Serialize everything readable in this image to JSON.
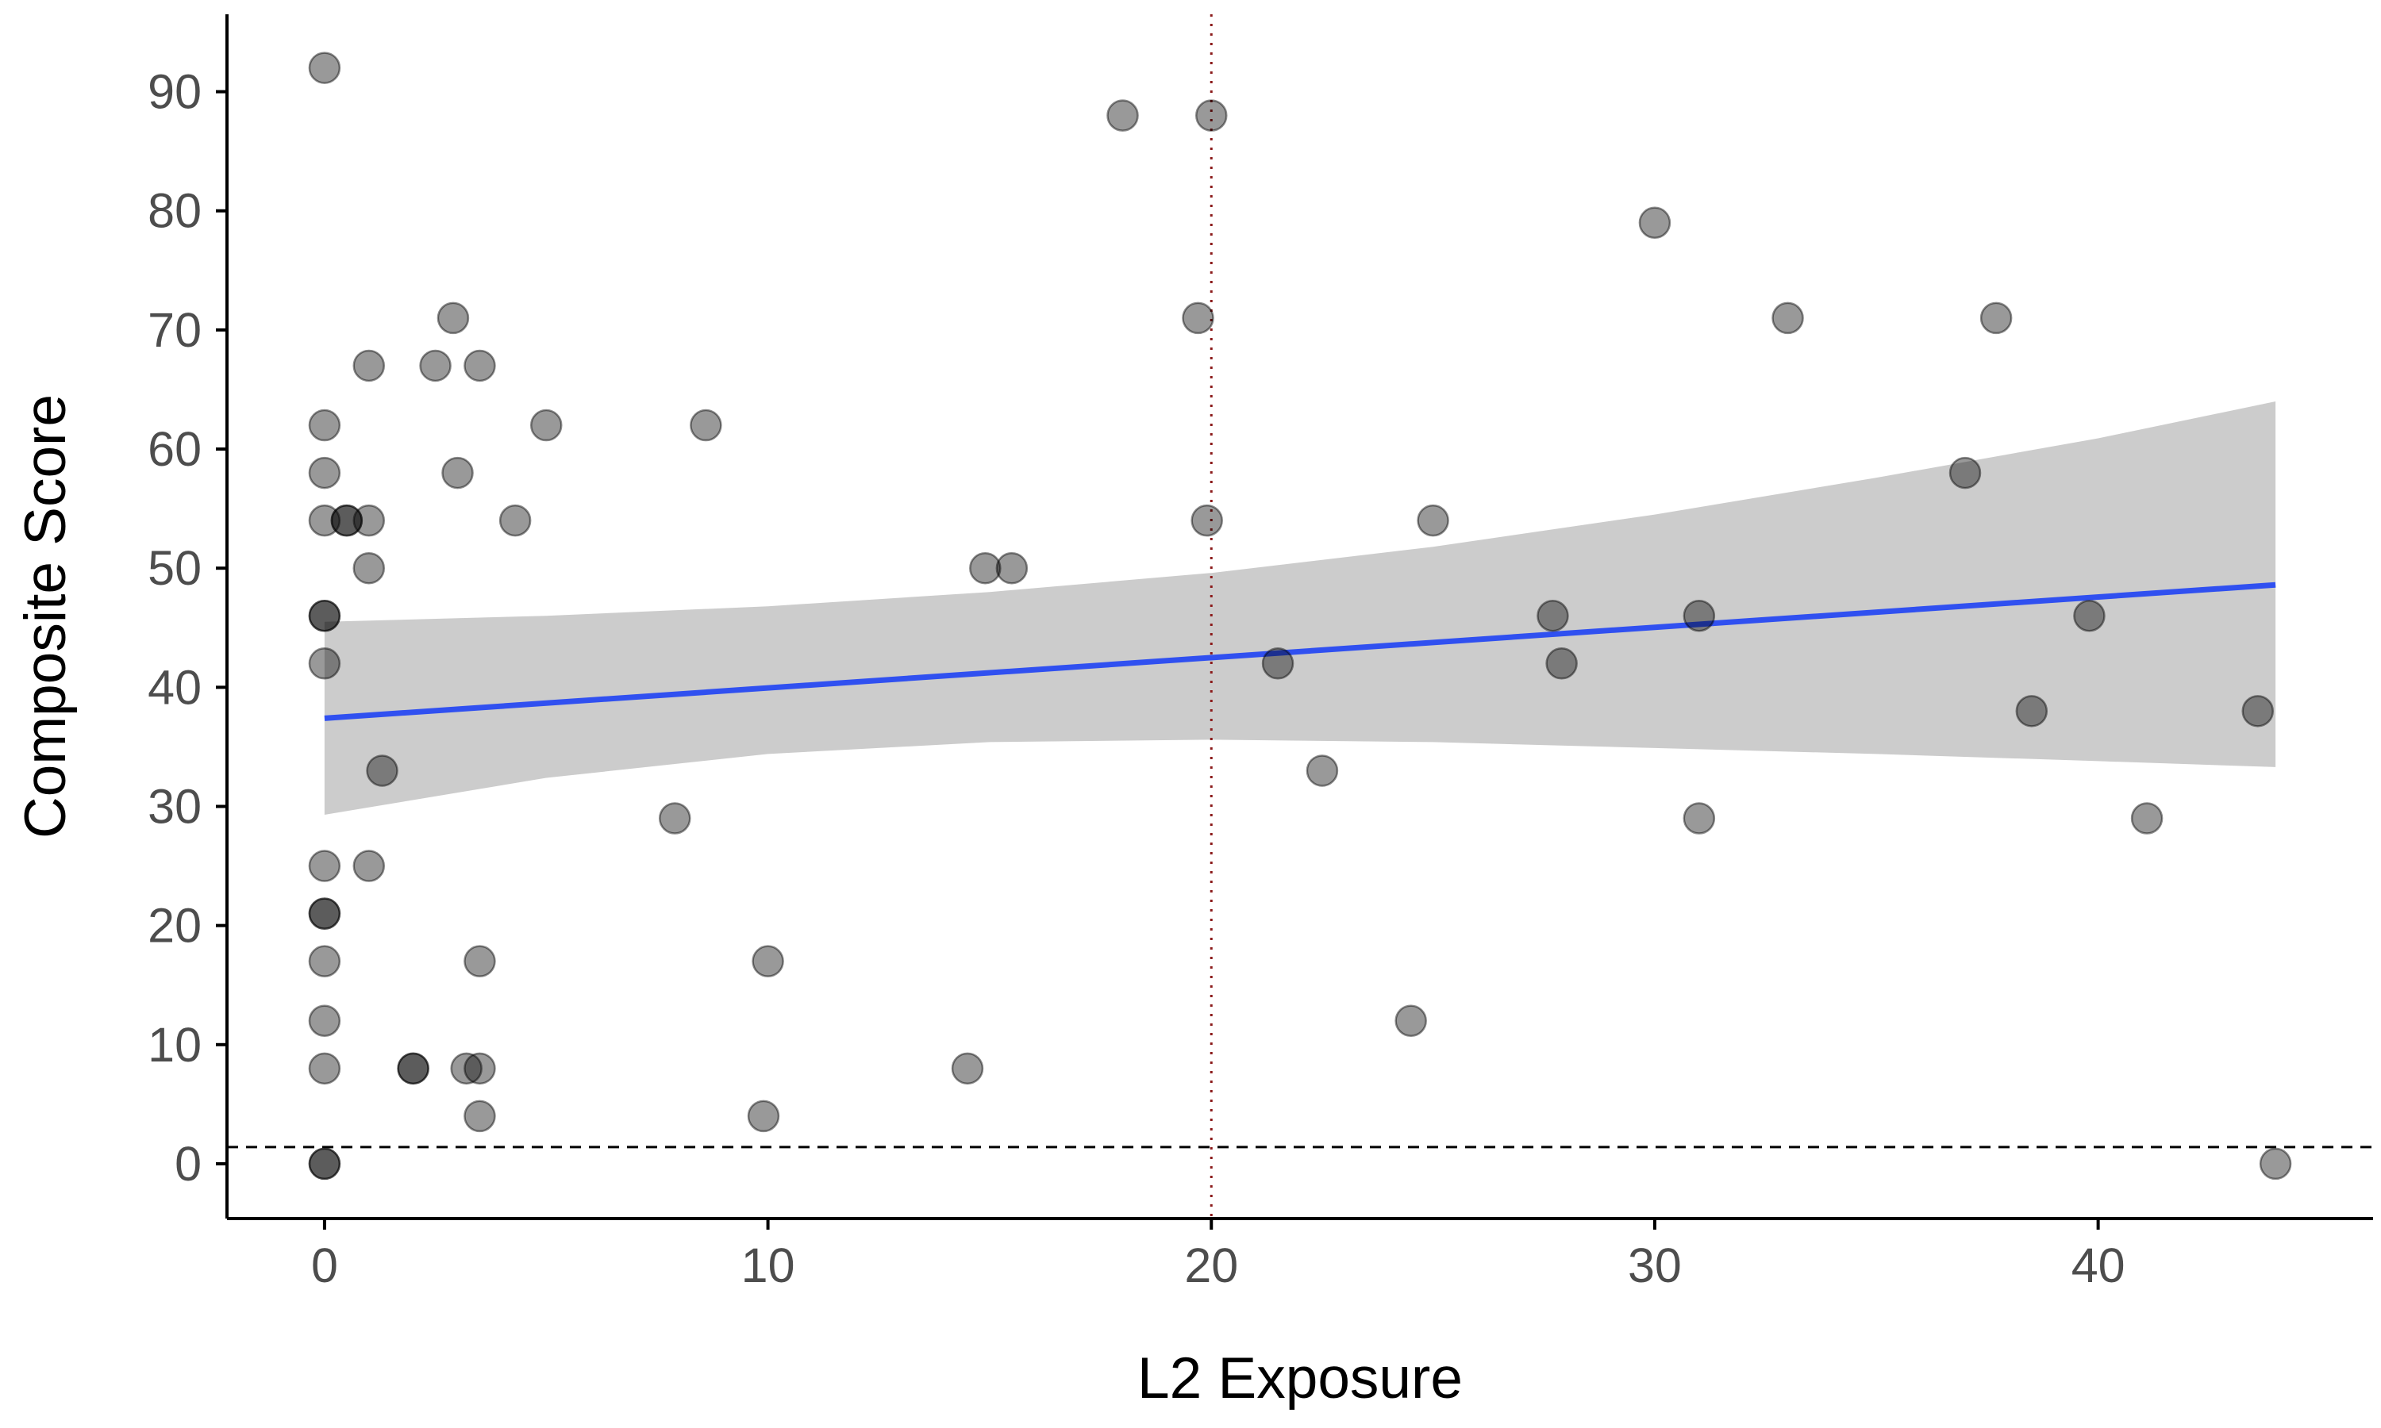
{
  "chart_data": {
    "type": "scatter",
    "xlabel": "L2 Exposure",
    "ylabel": "Composite Score",
    "xlim": [
      -2.2,
      46.2
    ],
    "ylim": [
      -4.6,
      96.5
    ],
    "x_ticks": [
      0,
      10,
      20,
      30,
      40
    ],
    "y_ticks": [
      0,
      10,
      20,
      30,
      40,
      50,
      60,
      70,
      80,
      90
    ],
    "grid": false,
    "legend": "none",
    "colors": {
      "points": "#000000",
      "point_opacity": 0.4,
      "fit_line": "#3050f0",
      "confidence_band": "#cccccc",
      "vertical_reference": "#8b1a1a",
      "horizontal_reference": "#000000",
      "axis": "#000000",
      "tick_label": "#4d4d4d"
    },
    "points": [
      {
        "x": 0,
        "y": 92
      },
      {
        "x": 0,
        "y": 62
      },
      {
        "x": 0,
        "y": 58
      },
      {
        "x": 0,
        "y": 54
      },
      {
        "x": 0,
        "y": 46
      },
      {
        "x": 0,
        "y": 46
      },
      {
        "x": 0,
        "y": 42
      },
      {
        "x": 0,
        "y": 25
      },
      {
        "x": 0,
        "y": 21
      },
      {
        "x": 0,
        "y": 21
      },
      {
        "x": 0,
        "y": 17
      },
      {
        "x": 0,
        "y": 12
      },
      {
        "x": 0,
        "y": 8
      },
      {
        "x": 0,
        "y": 0
      },
      {
        "x": 0,
        "y": 0
      },
      {
        "x": 0.5,
        "y": 54
      },
      {
        "x": 0.5,
        "y": 54
      },
      {
        "x": 1,
        "y": 67
      },
      {
        "x": 1,
        "y": 54
      },
      {
        "x": 1,
        "y": 50
      },
      {
        "x": 1,
        "y": 25
      },
      {
        "x": 1.3,
        "y": 33
      },
      {
        "x": 2,
        "y": 8
      },
      {
        "x": 2,
        "y": 8
      },
      {
        "x": 2.5,
        "y": 67
      },
      {
        "x": 2.9,
        "y": 71
      },
      {
        "x": 3,
        "y": 58
      },
      {
        "x": 3.2,
        "y": 8
      },
      {
        "x": 3.5,
        "y": 67
      },
      {
        "x": 3.5,
        "y": 17
      },
      {
        "x": 3.5,
        "y": 8
      },
      {
        "x": 3.5,
        "y": 4
      },
      {
        "x": 4.3,
        "y": 54
      },
      {
        "x": 5,
        "y": 62
      },
      {
        "x": 7.9,
        "y": 29
      },
      {
        "x": 8.6,
        "y": 62
      },
      {
        "x": 9.9,
        "y": 4
      },
      {
        "x": 10,
        "y": 17
      },
      {
        "x": 14.5,
        "y": 8
      },
      {
        "x": 14.9,
        "y": 50
      },
      {
        "x": 15.5,
        "y": 50
      },
      {
        "x": 18,
        "y": 88
      },
      {
        "x": 19.7,
        "y": 71
      },
      {
        "x": 19.9,
        "y": 54
      },
      {
        "x": 20,
        "y": 88
      },
      {
        "x": 21.5,
        "y": 42
      },
      {
        "x": 22.5,
        "y": 33
      },
      {
        "x": 24.5,
        "y": 12
      },
      {
        "x": 25,
        "y": 54
      },
      {
        "x": 27.7,
        "y": 46
      },
      {
        "x": 27.9,
        "y": 42
      },
      {
        "x": 30,
        "y": 79
      },
      {
        "x": 31,
        "y": 46
      },
      {
        "x": 31,
        "y": 29
      },
      {
        "x": 33,
        "y": 71
      },
      {
        "x": 37,
        "y": 58
      },
      {
        "x": 37.7,
        "y": 71
      },
      {
        "x": 38.5,
        "y": 38
      },
      {
        "x": 39.8,
        "y": 46
      },
      {
        "x": 41.1,
        "y": 29
      },
      {
        "x": 43.6,
        "y": 38
      },
      {
        "x": 44,
        "y": 0
      }
    ],
    "fit": {
      "method": "linear",
      "x": [
        0,
        44
      ],
      "y": [
        37.4,
        48.6
      ]
    },
    "confidence_band": {
      "x": [
        0,
        5,
        10,
        15,
        20,
        25,
        30,
        35,
        40,
        44
      ],
      "lower": [
        29.3,
        32.4,
        34.4,
        35.4,
        35.6,
        35.4,
        34.9,
        34.4,
        33.8,
        33.3
      ],
      "upper": [
        45.5,
        46.0,
        46.8,
        48.0,
        49.6,
        51.8,
        54.5,
        57.6,
        60.9,
        64.0
      ]
    },
    "reference_lines": {
      "vertical_x": 20,
      "horizontal_y": 1.4
    }
  }
}
